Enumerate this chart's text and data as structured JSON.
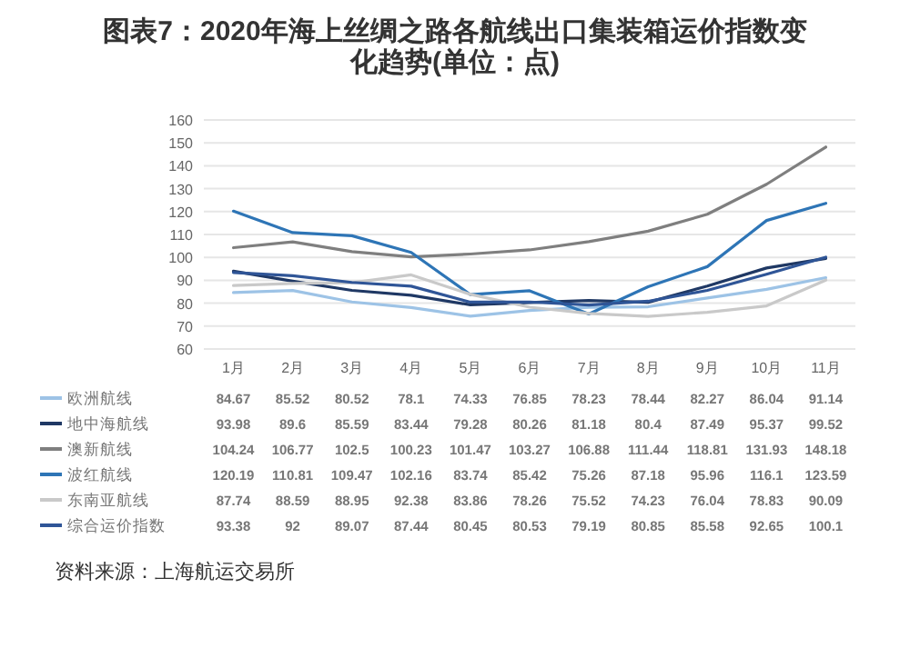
{
  "chart_data": {
    "type": "line",
    "title": "图表7：2020年海上丝绸之路各航线出口集装箱运价指数变化趋势(单位：点)",
    "categories": [
      "1月",
      "2月",
      "3月",
      "4月",
      "5月",
      "6月",
      "7月",
      "8月",
      "9月",
      "10月",
      "11月"
    ],
    "series": [
      {
        "name": "欧洲航线",
        "color": "#9dc3e6",
        "values": [
          84.67,
          85.52,
          80.52,
          78.1,
          74.33,
          76.85,
          78.23,
          78.44,
          82.27,
          86.04,
          91.14
        ]
      },
      {
        "name": "地中海航线",
        "color": "#1f3864",
        "values": [
          93.98,
          89.6,
          85.59,
          83.44,
          79.28,
          80.26,
          81.18,
          80.4,
          87.49,
          95.37,
          99.52
        ]
      },
      {
        "name": "澳新航线",
        "color": "#7f7f7f",
        "values": [
          104.24,
          106.77,
          102.5,
          100.23,
          101.47,
          103.27,
          106.88,
          111.44,
          118.81,
          131.93,
          148.18
        ]
      },
      {
        "name": "波红航线",
        "color": "#2e75b6",
        "values": [
          120.19,
          110.81,
          109.47,
          102.16,
          83.74,
          85.42,
          75.26,
          87.18,
          95.96,
          116.1,
          123.59
        ]
      },
      {
        "name": "东南亚航线",
        "color": "#c9c9c9",
        "values": [
          87.74,
          88.59,
          88.95,
          92.38,
          83.86,
          78.26,
          75.52,
          74.23,
          76.04,
          78.83,
          90.09
        ]
      },
      {
        "name": "综合运价指数",
        "color": "#2f5597",
        "values": [
          93.38,
          92,
          89.07,
          87.44,
          80.45,
          80.53,
          79.19,
          80.85,
          85.58,
          92.65,
          100.1
        ]
      }
    ],
    "ylim": [
      60,
      160
    ],
    "yticks": [
      60,
      70,
      80,
      90,
      100,
      110,
      120,
      130,
      140,
      150,
      160
    ],
    "grid": "y",
    "legend": "bottom",
    "data_labels": true,
    "annotations": [
      "资料来源：上海航运交易所"
    ]
  }
}
